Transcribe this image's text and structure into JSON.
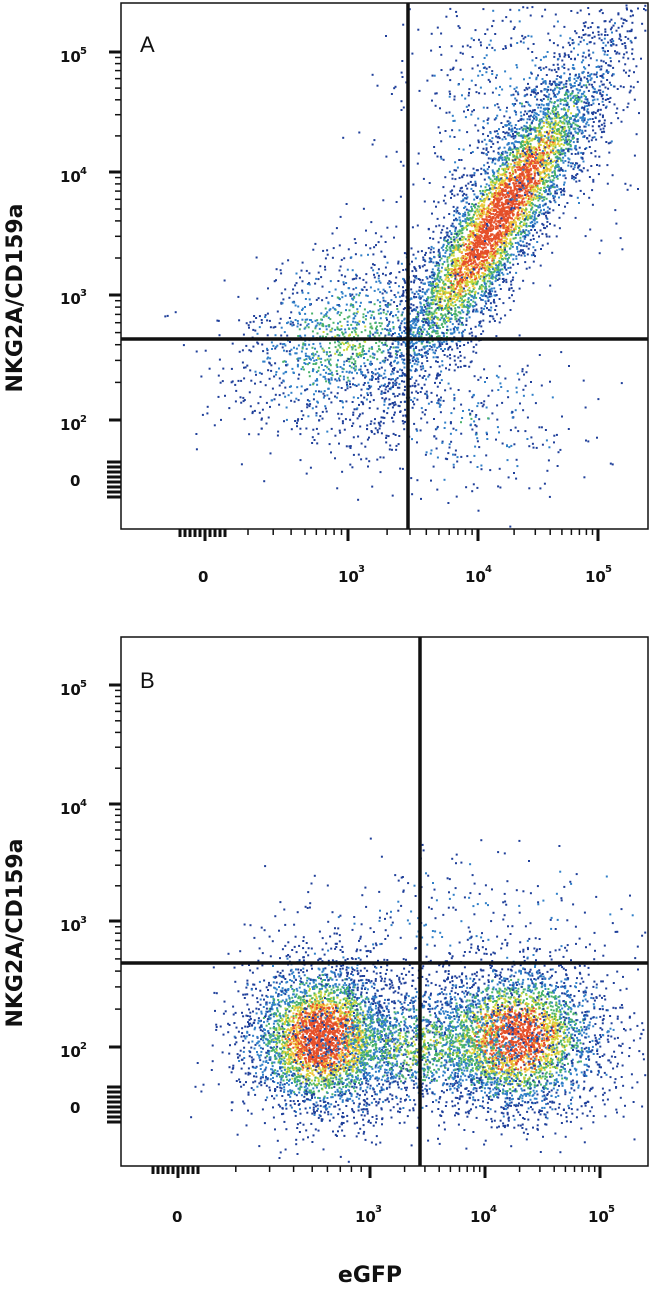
{
  "chart_data": [
    {
      "type": "scatter",
      "panel_label": "A",
      "xlabel": "",
      "ylabel": "NKG2A/CD159a",
      "x_scale": "biexponential",
      "y_scale": "biexponential",
      "x_ticks": [
        {
          "base": "0",
          "exp": ""
        },
        {
          "base": "10",
          "exp": "3"
        },
        {
          "base": "10",
          "exp": "4"
        },
        {
          "base": "10",
          "exp": "5"
        }
      ],
      "y_ticks": [
        {
          "base": "0",
          "exp": ""
        },
        {
          "base": "10",
          "exp": "2"
        },
        {
          "base": "10",
          "exp": "3"
        },
        {
          "base": "10",
          "exp": "4"
        },
        {
          "base": "10",
          "exp": "5"
        }
      ],
      "quadrant_gate": {
        "x": 2700,
        "y": 420
      },
      "density_colors": [
        "#1f3f9a",
        "#2f7fc8",
        "#49b26b",
        "#c8d83a",
        "#f2c53d",
        "#e5502a"
      ],
      "populations": [
        {
          "description": "main eGFP+ NKG2A+ diagonal population",
          "x_center": 15000,
          "y_center": 4500,
          "spread": "diagonal",
          "density": "high"
        },
        {
          "description": "diffuse eGFP- NKG2A low cells",
          "x_center": 900,
          "y_center": 450,
          "spread": "broad",
          "density": "low"
        }
      ]
    },
    {
      "type": "scatter",
      "panel_label": "B",
      "xlabel": "eGFP",
      "ylabel": "NKG2A/CD159a",
      "x_scale": "biexponential",
      "y_scale": "biexponential",
      "x_ticks": [
        {
          "base": "0",
          "exp": ""
        },
        {
          "base": "10",
          "exp": "3"
        },
        {
          "base": "10",
          "exp": "4"
        },
        {
          "base": "10",
          "exp": "5"
        }
      ],
      "y_ticks": [
        {
          "base": "0",
          "exp": ""
        },
        {
          "base": "10",
          "exp": "2"
        },
        {
          "base": "10",
          "exp": "3"
        },
        {
          "base": "10",
          "exp": "4"
        },
        {
          "base": "10",
          "exp": "5"
        }
      ],
      "quadrant_gate": {
        "x": 2700,
        "y": 450
      },
      "density_colors": [
        "#1f3f9a",
        "#2f7fc8",
        "#49b26b",
        "#c8d83a",
        "#f2c53d",
        "#e5502a"
      ],
      "populations": [
        {
          "description": "eGFP- NKG2A- population",
          "x_center": 350,
          "y_center": 120,
          "spread": "round",
          "density": "high"
        },
        {
          "description": "eGFP+ NKG2A- population",
          "x_center": 18000,
          "y_center": 120,
          "spread": "round",
          "density": "high"
        }
      ]
    }
  ]
}
